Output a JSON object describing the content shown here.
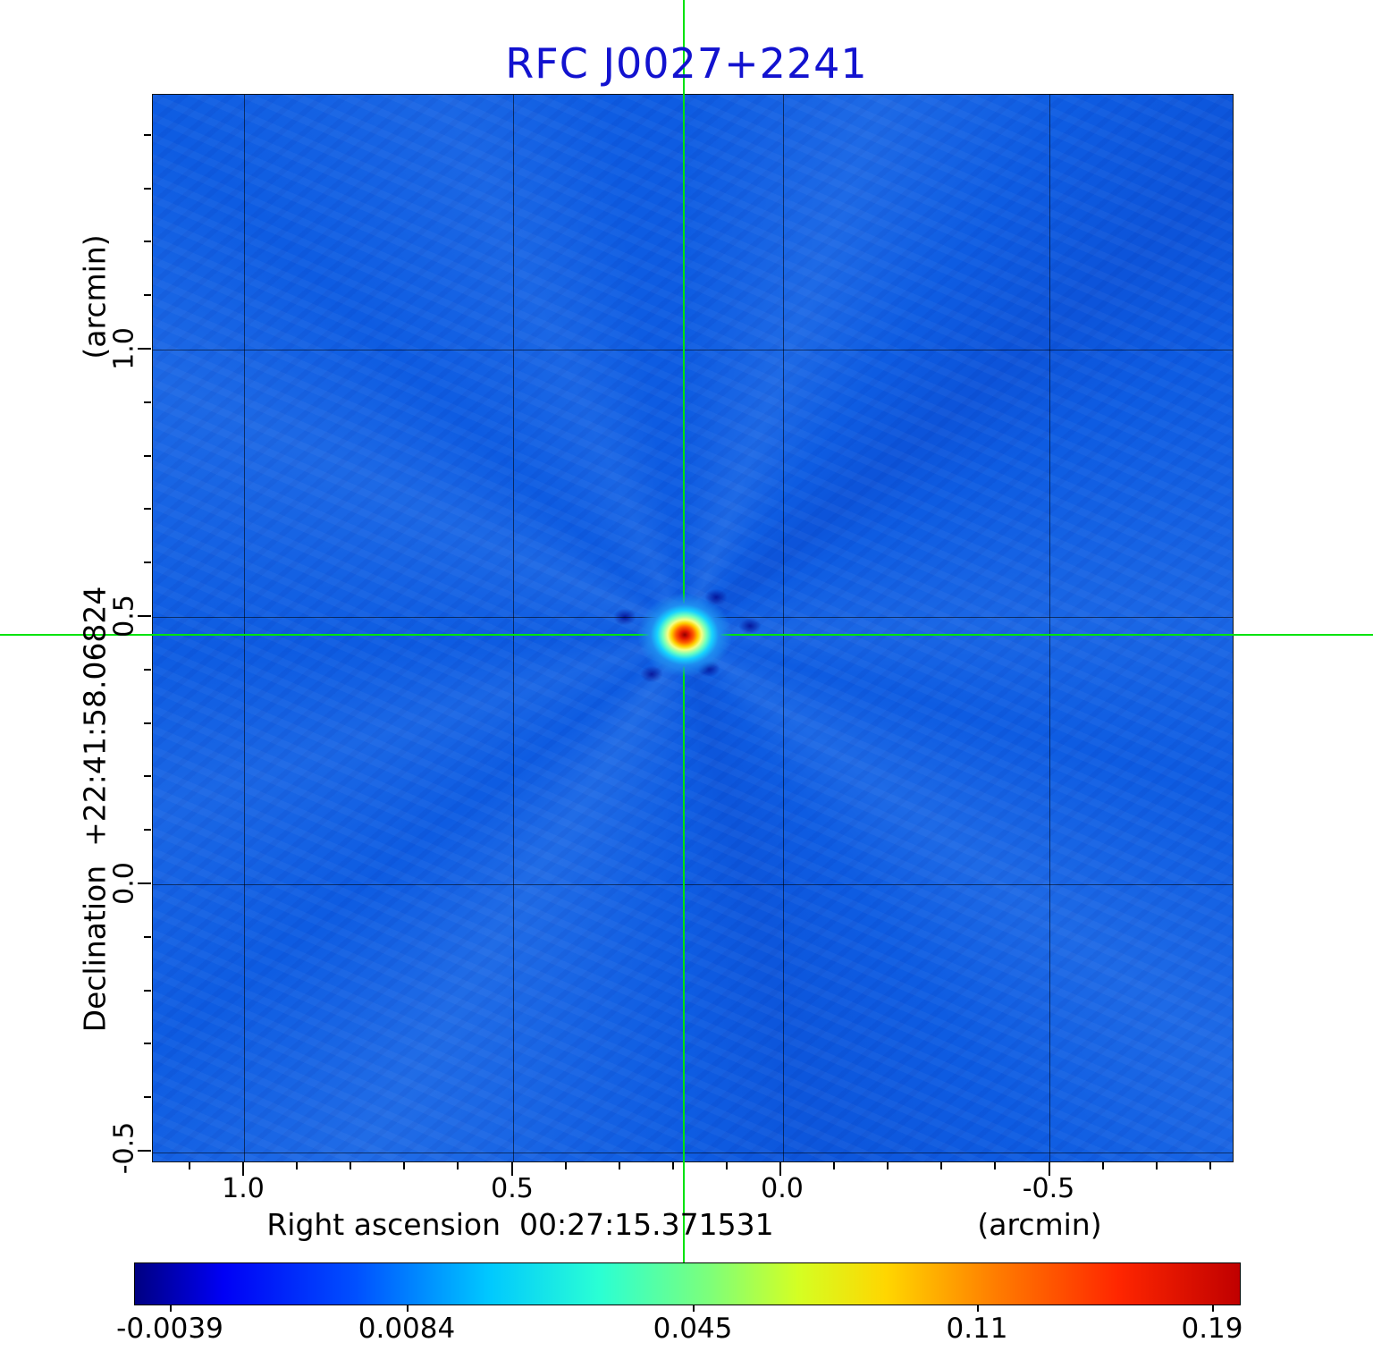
{
  "title": "RFC J0027+2241",
  "axes": {
    "x_label": "Right ascension  00:27:15.371531",
    "x_unit": "(arcmin)",
    "y_label": "Declination  +22:41:58.06824",
    "y_unit": "(arcmin)",
    "x_ticks": [
      "1.0",
      "0.5",
      "0.0",
      "-0.5"
    ],
    "y_ticks": [
      "1.0",
      "0.5",
      "0.0",
      "-0.5"
    ]
  },
  "colorbar": {
    "tick_labels": [
      "-0.0039",
      "0.0084",
      "0.045",
      "0.11",
      "0.19"
    ]
  },
  "colors": {
    "title": "#1212cf",
    "plot_background": "#0e5ce2",
    "crosshair": "#00e30c",
    "grid": "rgba(0,0,0,0.55)"
  },
  "chart_data": {
    "type": "heatmap",
    "title": "RFC J0027+2241",
    "xlabel": "Right ascension 00:27:15.371531 (arcmin)",
    "ylabel": "Declination +22:41:58.06824 (arcmin)",
    "x_ticks_arcmin": [
      1.0,
      0.5,
      0.0,
      -0.5
    ],
    "y_ticks_arcmin": [
      1.0,
      0.5,
      0.0,
      -0.5
    ],
    "x_range_arcmin": [
      1.17,
      -0.84
    ],
    "y_range_arcmin": [
      -0.52,
      1.48
    ],
    "grid": true,
    "colormap": "jet",
    "colorbar_ticks": [
      -0.0039,
      0.0084,
      0.045,
      0.11,
      0.19
    ],
    "intensity_min": -0.0039,
    "intensity_max": 0.19,
    "background_level_color": "#0e5ce2",
    "source_peak": {
      "x_arcmin": 0.18,
      "y_arcmin": 0.46,
      "peak_value": 0.19
    },
    "crosshair": {
      "x_arcmin": 0.18,
      "y_arcmin": 0.46,
      "color": "#00e30c"
    },
    "legend_position": "bottom-colorbar"
  }
}
